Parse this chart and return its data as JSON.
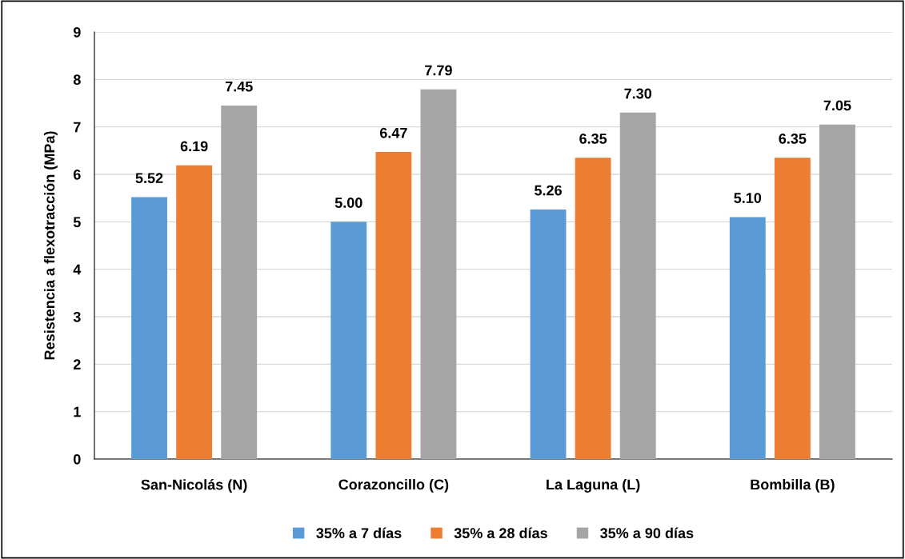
{
  "chart_data": {
    "type": "bar",
    "ylabel": "Resistencia a flexotracción (MPa)",
    "categories": [
      "San-Nicolás (N)",
      "Corazoncillo (C)",
      "La Laguna (L)",
      "Bombilla (B)"
    ],
    "series": [
      {
        "name": "35% a 7 días",
        "color": "#5b9bd5",
        "values": [
          5.52,
          5.0,
          5.26,
          5.1
        ],
        "value_labels": [
          "5.52",
          "5.00",
          "5.26",
          "5.10"
        ]
      },
      {
        "name": "35% a 28 días",
        "color": "#ed7d31",
        "values": [
          6.19,
          6.47,
          6.35,
          6.35
        ],
        "value_labels": [
          "6.19",
          "6.47",
          "6.35",
          "6.35"
        ]
      },
      {
        "name": "35% a 90 días",
        "color": "#a5a5a5",
        "values": [
          7.45,
          7.79,
          7.3,
          7.05
        ],
        "value_labels": [
          "7.45",
          "7.79",
          "7.30",
          "7.05"
        ]
      }
    ],
    "ylim": [
      0,
      9
    ],
    "yticks": [
      0,
      1,
      2,
      3,
      4,
      5,
      6,
      7,
      8,
      9
    ],
    "grid": "y",
    "legend": "bottom"
  }
}
